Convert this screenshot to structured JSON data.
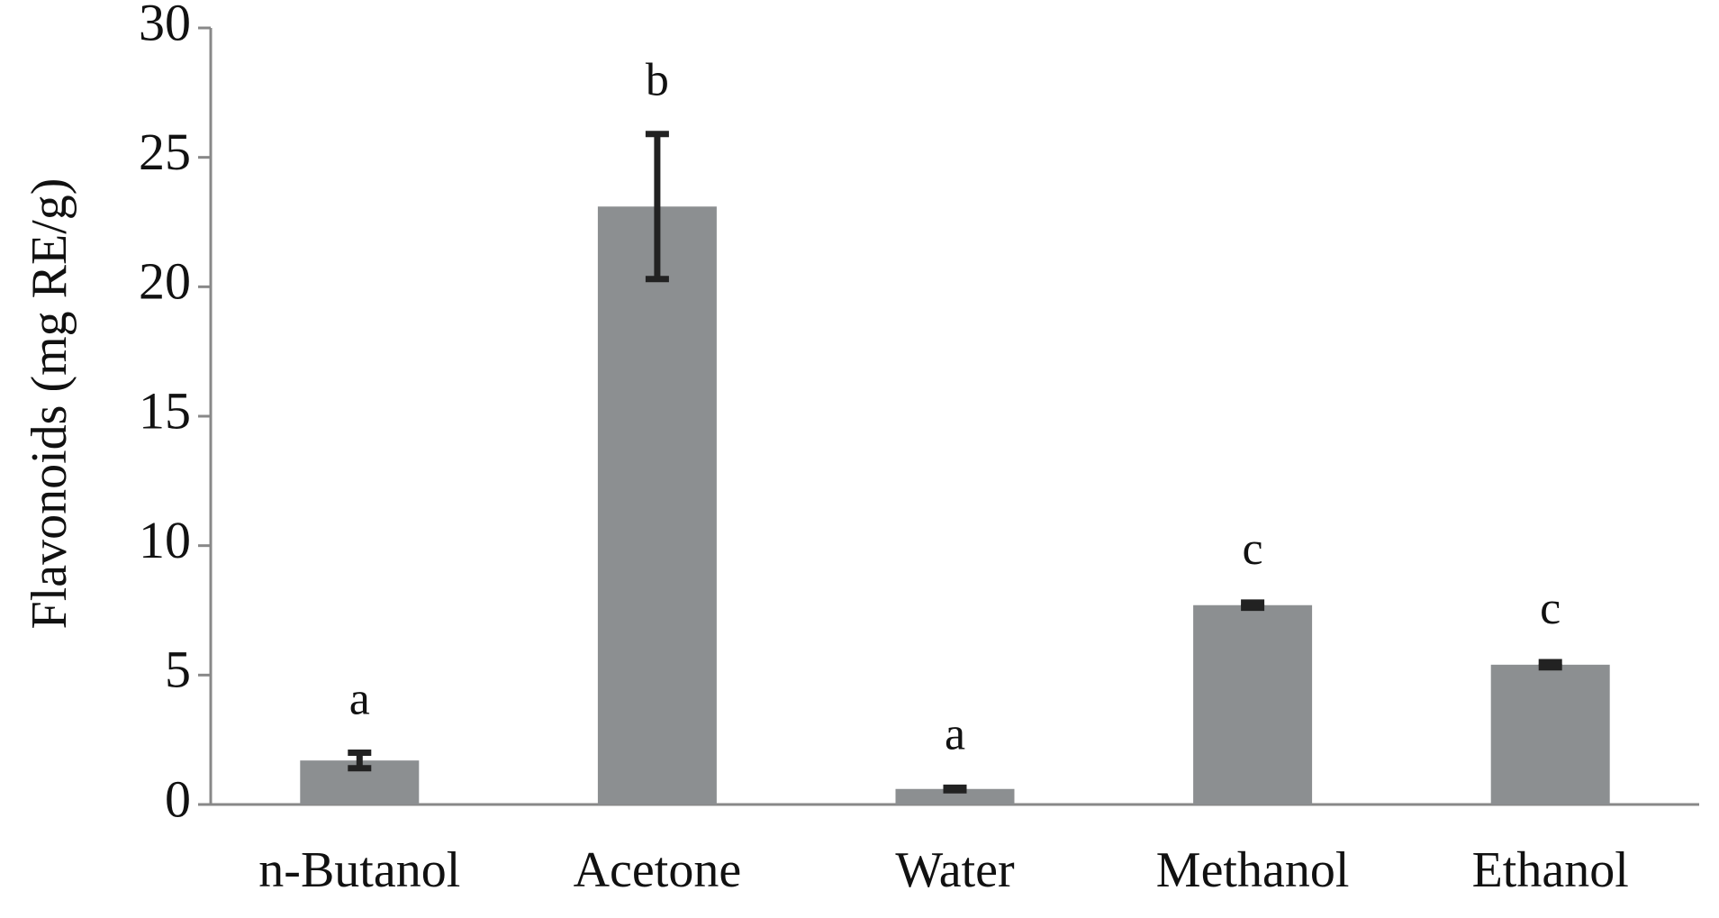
{
  "chart_data": {
    "type": "bar",
    "ylabel": "Flavonoids (mg RE/g)",
    "categories": [
      "n-Butanol",
      "Acetone",
      "Water",
      "Methanol",
      "Ethanol"
    ],
    "values": [
      1.7,
      23.1,
      0.6,
      7.7,
      5.4
    ],
    "errors": [
      0.3,
      2.8,
      0.05,
      0.1,
      0.1
    ],
    "annotations": [
      "a",
      "b",
      "a",
      "c",
      "c"
    ],
    "color": "#8c8f91",
    "error_color": "#222222",
    "ylim": [
      0,
      30
    ],
    "yticks": [
      0,
      5,
      10,
      15,
      20,
      25,
      30
    ],
    "grid": false
  }
}
